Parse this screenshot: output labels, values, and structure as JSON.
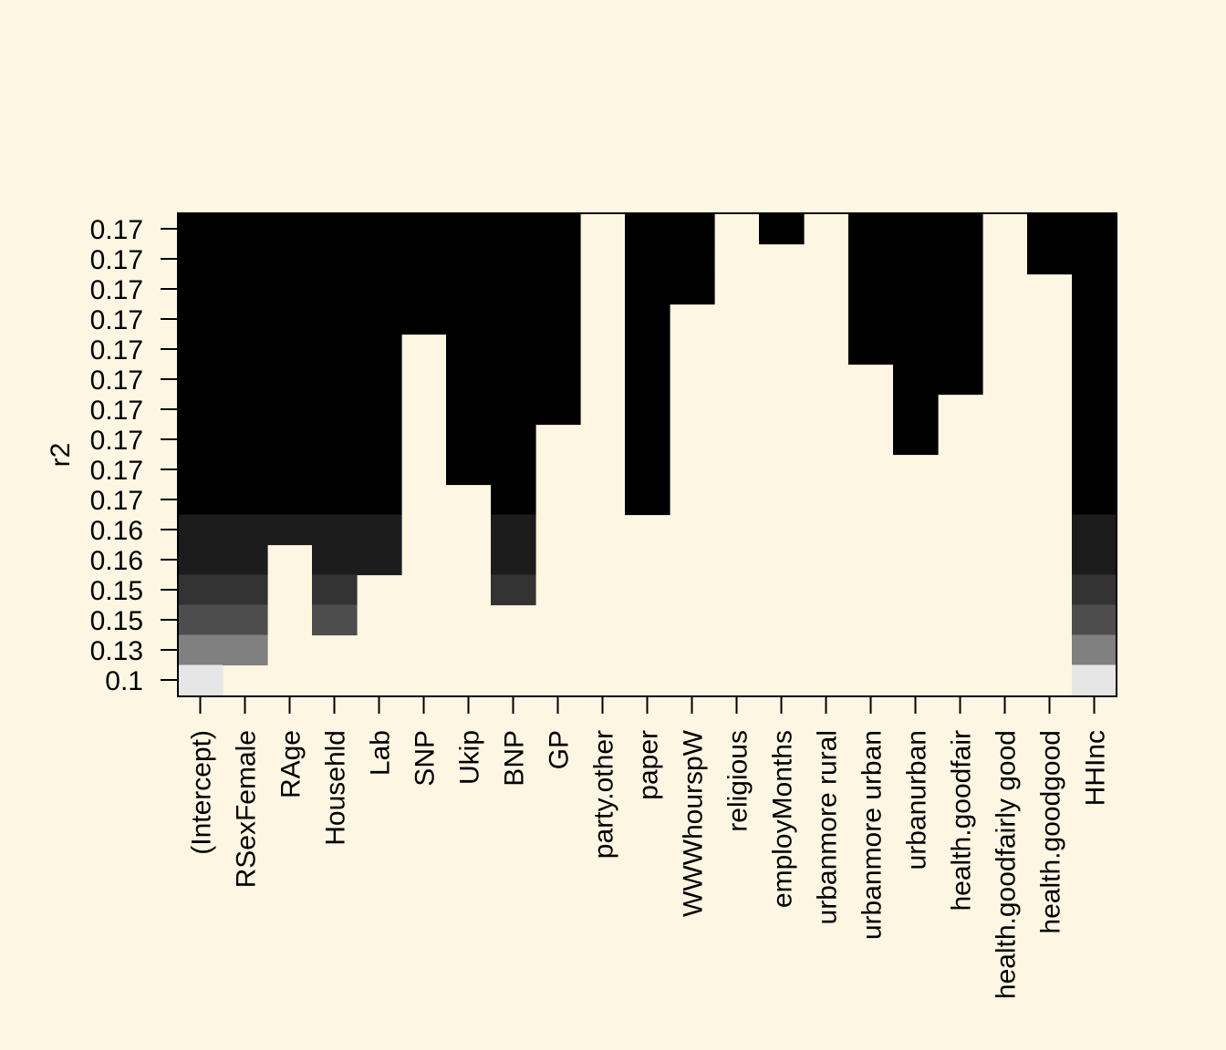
{
  "colors": {
    "background": "#FDF6E3",
    "levels": [
      "#000000",
      "#1C1C1C",
      "#333333",
      "#4D4D4D",
      "#808080",
      "#E6E6E6"
    ]
  },
  "chart_data": {
    "type": "heatmap",
    "title": "",
    "xlabel": "",
    "ylabel": "r2",
    "variables": [
      "(Intercept)",
      "RSexFemale",
      "RAge",
      "Househld",
      "Lab",
      "SNP",
      "Ukip",
      "BNP",
      "GP",
      "party.other",
      "paper",
      "WWWhourspW",
      "religious",
      "employMonths",
      "urbanmore rural",
      "urbanmore urban",
      "urbanurban",
      "health.goodfair",
      "health.goodfairly good",
      "health.goodgood",
      "HHInc"
    ],
    "rows_r2_labels": [
      "0.17",
      "0.17",
      "0.17",
      "0.17",
      "0.17",
      "0.17",
      "0.17",
      "0.17",
      "0.17",
      "0.17",
      "0.16",
      "0.16",
      "0.15",
      "0.15",
      "0.13",
      "0.1"
    ],
    "row_shade_level": [
      0,
      0,
      0,
      0,
      0,
      0,
      0,
      0,
      0,
      0,
      1,
      1,
      2,
      3,
      4,
      5
    ],
    "included_from_top_rows": [
      16,
      15,
      11,
      14,
      12,
      4,
      9,
      13,
      7,
      0,
      10,
      3,
      0,
      1,
      0,
      5,
      8,
      6,
      0,
      2,
      16
    ]
  }
}
